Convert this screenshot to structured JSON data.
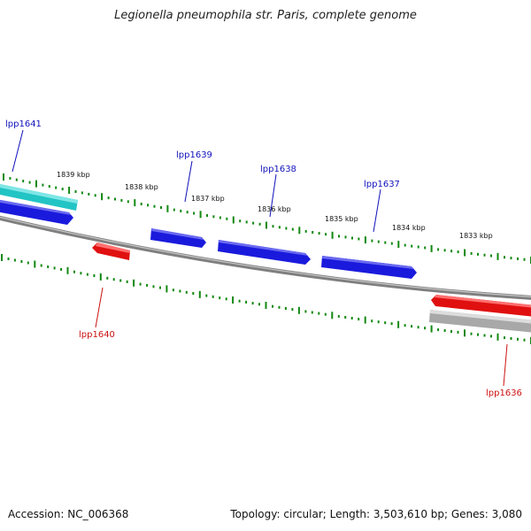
{
  "title": "Legionella pneumophila str. Paris, complete genome",
  "footer": {
    "accession": "Accession: NC_006368",
    "summary": "Topology: circular; Length: 3,503,610 bp; Genes: 3,080"
  },
  "colors": {
    "background": "#ffffff",
    "backbone": "#7f7f7f",
    "tick": "#118811",
    "forward_gene_label": "#1111bb",
    "reverse_gene_label": "#cc1111",
    "gene_blue": "#1a1add",
    "gene_red": "#e01010",
    "gene_cyan": "#22bbbb",
    "gene_gray": "#a8a8a8"
  },
  "scale_labels": [
    "1839 kbp",
    "1838 kbp",
    "1837 kbp",
    "1836 kbp",
    "1835 kbp",
    "1834 kbp",
    "1833 kbp"
  ],
  "genes_upper": [
    {
      "label": "lpp1641"
    },
    {
      "label": "lpp1639"
    },
    {
      "label": "lpp1638"
    },
    {
      "label": "lpp1637"
    }
  ],
  "genes_lower": [
    {
      "label": "lpp1640"
    },
    {
      "label": "lpp1636"
    }
  ]
}
